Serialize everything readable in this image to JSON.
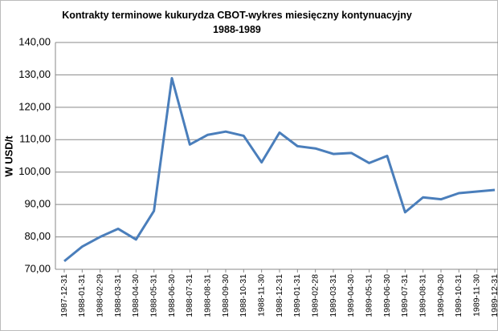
{
  "chart_data": {
    "type": "line",
    "title": "Kontrakty terminowe  kukurydza CBOT-wykres miesięczny kontynuacyjny 1988-1989",
    "y_label": "W USD/t",
    "categories": [
      "1987-12-31",
      "1988-01-31",
      "1988-02-29",
      "1988-03-31",
      "1988-04-30",
      "1988-05-31",
      "1988-06-30",
      "1988-07-31",
      "1988-08-31",
      "1988-09-30",
      "1988-10-31",
      "1988-11-30",
      "1988-12-31",
      "1989-01-31",
      "1989-02-28",
      "1989-03-31",
      "1989-04-30",
      "1989-05-31",
      "1989-06-30",
      "1989-07-31",
      "1989-08-31",
      "1989-09-30",
      "1989-10-31",
      "1989-11-30",
      "1989-12-31"
    ],
    "values": [
      72.5,
      77,
      80,
      82.5,
      79.2,
      88,
      129,
      108.5,
      111.5,
      112.5,
      111.2,
      103,
      112.2,
      108,
      107.3,
      105.6,
      105.9,
      102.8,
      105,
      87.6,
      92.2,
      91.6,
      93.5,
      94,
      94.5
    ],
    "color": "#4a7ebb",
    "ylim": [
      70,
      140
    ],
    "yticks": [
      {
        "value": 70,
        "label": "70,00"
      },
      {
        "value": 80,
        "label": "80,00"
      },
      {
        "value": 90,
        "label": "90,00"
      },
      {
        "value": 100,
        "label": "100,00"
      },
      {
        "value": 110,
        "label": "110,00"
      },
      {
        "value": 120,
        "label": "120,00"
      },
      {
        "value": 130,
        "label": "130,00"
      },
      {
        "value": 140,
        "label": "140,00"
      }
    ],
    "grid": true
  }
}
